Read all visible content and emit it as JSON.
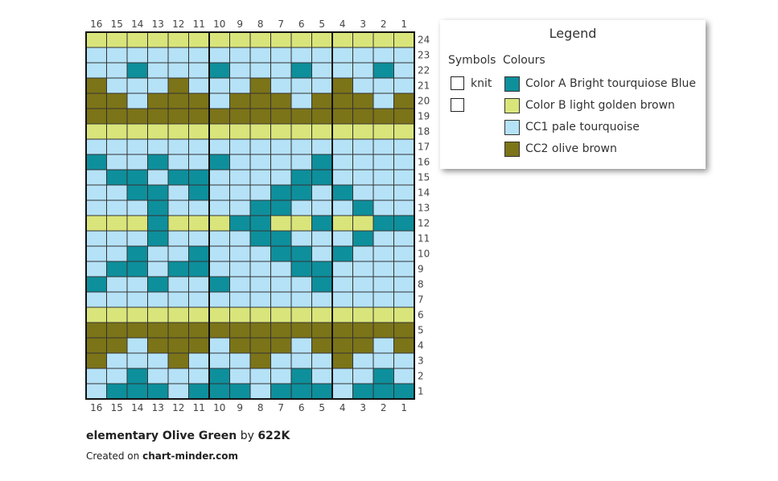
{
  "chart": {
    "columns": 16,
    "rows": 24,
    "column_labels": [
      "16",
      "15",
      "14",
      "13",
      "12",
      "11",
      "10",
      "9",
      "8",
      "7",
      "6",
      "5",
      "4",
      "3",
      "2",
      "1"
    ],
    "row_labels": [
      "24",
      "23",
      "22",
      "21",
      "20",
      "19",
      "18",
      "17",
      "16",
      "15",
      "14",
      "13",
      "12",
      "11",
      "10",
      "9",
      "8",
      "7",
      "6",
      "5",
      "4",
      "3",
      "2",
      "1"
    ],
    "colors": {
      "A": "#0e8f9c",
      "B": "#d9e57a",
      "C": "#b5e2f7",
      "D": "#7c7418"
    },
    "rows_pattern": [
      "BBBBBBBBBBBBBBBB",
      "CCCCCCCCCCCCCCCC",
      "CCACCCACCCACCCAC",
      "DCCCDCCCDCCCDCCC",
      "DDCDDDCDDDCDDDCD",
      "DDDDDDDDDDDDDDDD",
      "BBBBBBBBBBBBBBBB",
      "CCCCCCCCCCCCCCCC",
      "ACCACCACCCCACCCC",
      "CAACAACCCCAACCCC",
      "CCAACACCCAACACCC",
      "CCCACCCCAACCCACC",
      "BBBABBBAABBABBAA",
      "CCCACCCCAACCCACC",
      "CCACCACCCAACACCC",
      "CAACAACCCCAACCCC",
      "ACCACCACCCCACCCC",
      "CCCCCCCCCCCCCCCC",
      "BBBBBBBBBBBBBBBB",
      "DDDDDDDDDDDDDDDD",
      "DDCDDDCDDDCDDDCD",
      "DCCCDCCCDCCCDCCC",
      "CCACCCACCCACCCAC",
      "CAAACAAACAAACAAA"
    ]
  },
  "legend": {
    "title": "Legend",
    "symbols_header": "Symbols",
    "colours_header": "Colours",
    "symbols": [
      {
        "label": "knit"
      },
      {
        "label": ""
      }
    ],
    "colours": [
      {
        "key": "A",
        "label": "Color A Bright tourquiose Blue",
        "color": "#0e8f9c"
      },
      {
        "key": "B",
        "label": "Color B light golden brown",
        "color": "#d9e57a"
      },
      {
        "key": "C",
        "label": "CC1 pale tourquoise",
        "color": "#b5e2f7"
      },
      {
        "key": "D",
        "label": "CC2 olive brown",
        "color": "#7c7418"
      }
    ]
  },
  "credits": {
    "title": "elementary Olive Green",
    "by": "by",
    "author": "622K",
    "created_prefix": "Created on",
    "site": "chart-minder.com"
  }
}
